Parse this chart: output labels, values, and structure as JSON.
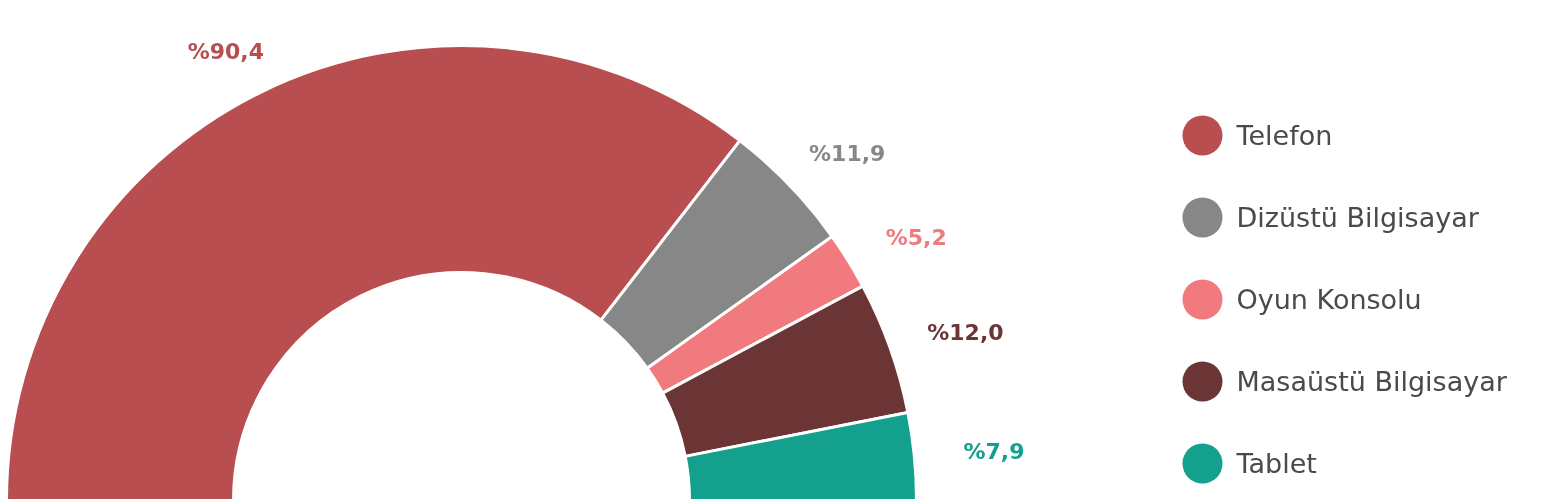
{
  "chart_data": {
    "type": "donut",
    "categories": [
      "Telefon",
      "Dizüstü Bilgisayar",
      "Oyun Konsolu",
      "Masaüstü Bilgisayar",
      "Tablet"
    ],
    "values": [
      90.4,
      11.9,
      5.2,
      12.0,
      7.9
    ],
    "colors": [
      "#b94e50",
      "#878787",
      "#f07a7d",
      "#6b3536",
      "#13a08c"
    ],
    "value_labels": [
      "%90,4",
      "%11,9",
      "%5,2",
      "%12,0",
      "%7,9"
    ],
    "legend": "right"
  }
}
